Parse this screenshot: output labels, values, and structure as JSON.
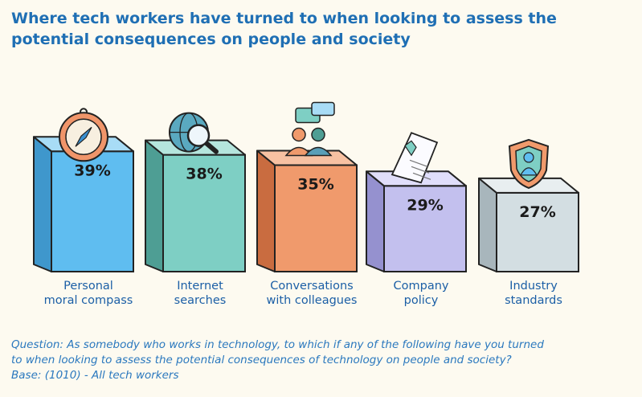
{
  "chart_data": {
    "type": "bar",
    "title": "Where tech workers have turned to when looking to assess the potential consequences on people and society",
    "categories": [
      [
        "Personal",
        "moral compass"
      ],
      [
        "Internet",
        "searches"
      ],
      [
        "Conversations",
        "with colleagues"
      ],
      [
        "Company",
        "policy"
      ],
      [
        "Industry",
        "standards"
      ]
    ],
    "values": [
      39,
      38,
      35,
      29,
      27
    ],
    "value_labels": [
      "39%",
      "38%",
      "35%",
      "29%",
      "27%"
    ],
    "icons": [
      "compass-icon",
      "globe-search-icon",
      "colleagues-chat-icon",
      "policy-document-icon",
      "shield-person-icon"
    ],
    "colors": [
      {
        "front": "#5fbdf0",
        "side": "#3f97cc",
        "top": "#a8dcf6"
      },
      {
        "front": "#7ecfc4",
        "side": "#4e9e94",
        "top": "#b5e5dd"
      },
      {
        "front": "#f09a6c",
        "side": "#c96c40",
        "top": "#f7c1a2"
      },
      {
        "front": "#c3c0ee",
        "side": "#9591cf",
        "top": "#e0defa"
      },
      {
        "front": "#d3dee2",
        "side": "#a8b6bc",
        "top": "#e8eef0"
      }
    ],
    "ylim": [
      0,
      40
    ]
  },
  "notes": {
    "question_line1": "Question: As somebody who works in technology, to which if any of the following have you turned",
    "question_line2": "to when looking to assess the potential consequences of technology on people and society?",
    "base": "Base: (1010) - All tech workers"
  }
}
